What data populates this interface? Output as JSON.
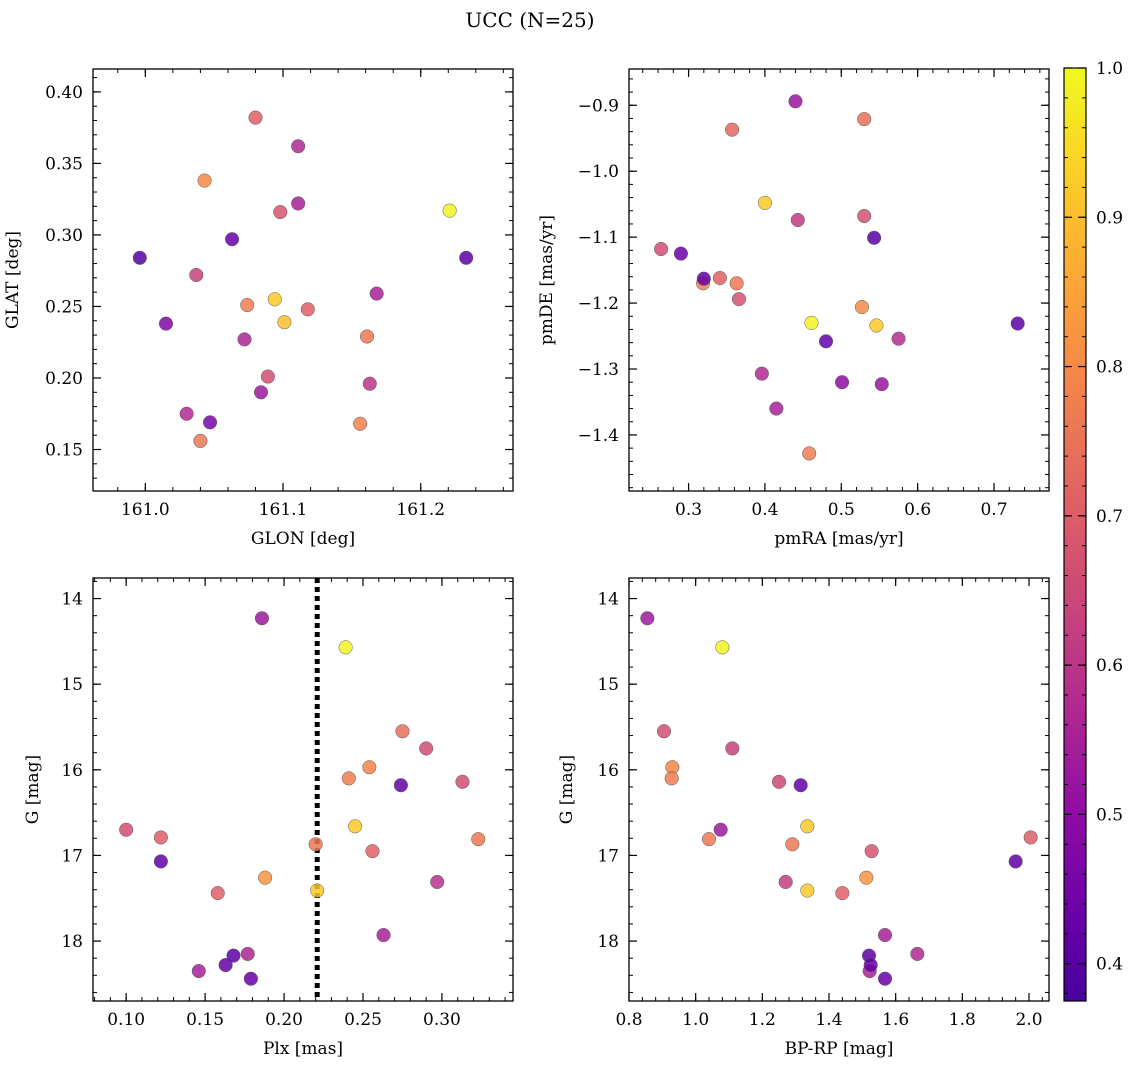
{
  "figure": {
    "title": "UCC (N=25)"
  },
  "colormap": {
    "name": "plasma",
    "range": [
      0.375,
      1.0
    ],
    "ticks": [
      "0.4",
      "0.5",
      "0.6",
      "0.7",
      "0.8",
      "0.9",
      "1.0"
    ],
    "tick_values": [
      0.4,
      0.5,
      0.6,
      0.7,
      0.8,
      0.9,
      1.0
    ]
  },
  "chart_data": [
    {
      "type": "scatter",
      "xlabel": "GLON [deg]",
      "ylabel": "GLAT [deg]",
      "xlim": [
        160.962,
        161.267
      ],
      "ylim": [
        0.121,
        0.416
      ],
      "xticks": [
        161.0,
        161.1,
        161.2
      ],
      "xtick_labels": [
        "161.0",
        "161.1",
        "161.2"
      ],
      "yticks": [
        0.15,
        0.2,
        0.25,
        0.3,
        0.35,
        0.4
      ],
      "ytick_labels": [
        "0.15",
        "0.20",
        "0.25",
        "0.30",
        "0.35",
        "0.40"
      ],
      "points": [
        {
          "x": 160.996,
          "y": 0.284,
          "c": 0.39
        },
        {
          "x": 161.015,
          "y": 0.238,
          "c": 0.47
        },
        {
          "x": 161.03,
          "y": 0.175,
          "c": 0.57
        },
        {
          "x": 161.037,
          "y": 0.272,
          "c": 0.63
        },
        {
          "x": 161.04,
          "y": 0.156,
          "c": 0.76
        },
        {
          "x": 161.043,
          "y": 0.338,
          "c": 0.8
        },
        {
          "x": 161.047,
          "y": 0.169,
          "c": 0.46
        },
        {
          "x": 161.063,
          "y": 0.297,
          "c": 0.43
        },
        {
          "x": 161.072,
          "y": 0.227,
          "c": 0.56
        },
        {
          "x": 161.074,
          "y": 0.251,
          "c": 0.77
        },
        {
          "x": 161.08,
          "y": 0.382,
          "c": 0.7
        },
        {
          "x": 161.084,
          "y": 0.19,
          "c": 0.53
        },
        {
          "x": 161.089,
          "y": 0.201,
          "c": 0.66
        },
        {
          "x": 161.094,
          "y": 0.255,
          "c": 0.92
        },
        {
          "x": 161.098,
          "y": 0.316,
          "c": 0.68
        },
        {
          "x": 161.101,
          "y": 0.239,
          "c": 0.9
        },
        {
          "x": 161.111,
          "y": 0.362,
          "c": 0.57
        },
        {
          "x": 161.111,
          "y": 0.322,
          "c": 0.55
        },
        {
          "x": 161.118,
          "y": 0.248,
          "c": 0.7
        },
        {
          "x": 161.156,
          "y": 0.168,
          "c": 0.78
        },
        {
          "x": 161.161,
          "y": 0.229,
          "c": 0.76
        },
        {
          "x": 161.163,
          "y": 0.196,
          "c": 0.6
        },
        {
          "x": 161.168,
          "y": 0.259,
          "c": 0.55
        },
        {
          "x": 161.221,
          "y": 0.317,
          "c": 0.99
        },
        {
          "x": 161.233,
          "y": 0.284,
          "c": 0.41
        }
      ]
    },
    {
      "type": "scatter",
      "xlabel": "pmRA [mas/yr]",
      "ylabel": "pmDE [mas/yr]",
      "xlim": [
        0.222,
        0.772
      ],
      "ylim": [
        -1.485,
        -0.845
      ],
      "xticks": [
        0.3,
        0.4,
        0.5,
        0.6,
        0.7
      ],
      "xtick_labels": [
        "0.3",
        "0.4",
        "0.5",
        "0.6",
        "0.7"
      ],
      "yticks": [
        -1.4,
        -1.3,
        -1.2,
        -1.1,
        -1.0,
        -0.9
      ],
      "ytick_labels": [
        "−1.4",
        "−1.3",
        "−1.2",
        "−1.1",
        "−1.0",
        "−0.9"
      ],
      "points": [
        {
          "x": 0.264,
          "y": -1.118,
          "c": 0.66
        },
        {
          "x": 0.29,
          "y": -1.125,
          "c": 0.43
        },
        {
          "x": 0.319,
          "y": -1.17,
          "c": 0.78
        },
        {
          "x": 0.32,
          "y": -1.163,
          "c": 0.42
        },
        {
          "x": 0.341,
          "y": -1.162,
          "c": 0.71
        },
        {
          "x": 0.357,
          "y": -0.937,
          "c": 0.72
        },
        {
          "x": 0.363,
          "y": -1.17,
          "c": 0.76
        },
        {
          "x": 0.366,
          "y": -1.194,
          "c": 0.67
        },
        {
          "x": 0.396,
          "y": -1.307,
          "c": 0.57
        },
        {
          "x": 0.4,
          "y": -1.048,
          "c": 0.92
        },
        {
          "x": 0.415,
          "y": -1.36,
          "c": 0.55
        },
        {
          "x": 0.44,
          "y": -0.894,
          "c": 0.52
        },
        {
          "x": 0.443,
          "y": -1.074,
          "c": 0.61
        },
        {
          "x": 0.458,
          "y": -1.428,
          "c": 0.77
        },
        {
          "x": 0.461,
          "y": -1.23,
          "c": 0.99
        },
        {
          "x": 0.48,
          "y": -1.258,
          "c": 0.42
        },
        {
          "x": 0.501,
          "y": -1.32,
          "c": 0.5
        },
        {
          "x": 0.527,
          "y": -1.206,
          "c": 0.8
        },
        {
          "x": 0.53,
          "y": -0.921,
          "c": 0.74
        },
        {
          "x": 0.53,
          "y": -1.068,
          "c": 0.67
        },
        {
          "x": 0.543,
          "y": -1.101,
          "c": 0.4
        },
        {
          "x": 0.546,
          "y": -1.234,
          "c": 0.92
        },
        {
          "x": 0.553,
          "y": -1.323,
          "c": 0.52
        },
        {
          "x": 0.575,
          "y": -1.254,
          "c": 0.58
        },
        {
          "x": 0.731,
          "y": -1.231,
          "c": 0.41
        }
      ]
    },
    {
      "type": "scatter",
      "xlabel": "Plx [mas]",
      "ylabel": "G [mag]",
      "xlim": [
        0.079,
        0.345
      ],
      "ylim": [
        18.7,
        13.76
      ],
      "xticks": [
        0.1,
        0.15,
        0.2,
        0.25,
        0.3
      ],
      "xtick_labels": [
        "0.10",
        "0.15",
        "0.20",
        "0.25",
        "0.30"
      ],
      "yticks": [
        14,
        15,
        16,
        17,
        18
      ],
      "ytick_labels": [
        "14",
        "15",
        "16",
        "17",
        "18"
      ],
      "vline": {
        "x": 0.221,
        "style": "dotted"
      },
      "points": [
        {
          "x": 0.1,
          "y": 16.7,
          "c": 0.66
        },
        {
          "x": 0.122,
          "y": 16.79,
          "c": 0.7
        },
        {
          "x": 0.122,
          "y": 17.07,
          "c": 0.42
        },
        {
          "x": 0.146,
          "y": 18.35,
          "c": 0.55
        },
        {
          "x": 0.158,
          "y": 17.44,
          "c": 0.7
        },
        {
          "x": 0.163,
          "y": 18.28,
          "c": 0.42
        },
        {
          "x": 0.168,
          "y": 18.17,
          "c": 0.41
        },
        {
          "x": 0.177,
          "y": 18.15,
          "c": 0.56
        },
        {
          "x": 0.179,
          "y": 18.44,
          "c": 0.43
        },
        {
          "x": 0.186,
          "y": 14.23,
          "c": 0.53
        },
        {
          "x": 0.188,
          "y": 17.26,
          "c": 0.82
        },
        {
          "x": 0.22,
          "y": 16.87,
          "c": 0.76
        },
        {
          "x": 0.221,
          "y": 17.41,
          "c": 0.92
        },
        {
          "x": 0.239,
          "y": 14.57,
          "c": 0.99
        },
        {
          "x": 0.241,
          "y": 16.1,
          "c": 0.77
        },
        {
          "x": 0.245,
          "y": 16.66,
          "c": 0.92
        },
        {
          "x": 0.254,
          "y": 15.97,
          "c": 0.79
        },
        {
          "x": 0.256,
          "y": 16.95,
          "c": 0.71
        },
        {
          "x": 0.263,
          "y": 17.93,
          "c": 0.55
        },
        {
          "x": 0.274,
          "y": 16.18,
          "c": 0.42
        },
        {
          "x": 0.275,
          "y": 15.55,
          "c": 0.74
        },
        {
          "x": 0.29,
          "y": 15.75,
          "c": 0.66
        },
        {
          "x": 0.297,
          "y": 17.31,
          "c": 0.59
        },
        {
          "x": 0.313,
          "y": 16.14,
          "c": 0.66
        },
        {
          "x": 0.323,
          "y": 16.81,
          "c": 0.76
        }
      ]
    },
    {
      "type": "scatter",
      "xlabel": "BP-RP [mag]",
      "ylabel": "G [mag]",
      "xlim": [
        0.8,
        2.06
      ],
      "ylim": [
        18.7,
        13.76
      ],
      "xticks": [
        0.8,
        1.0,
        1.2,
        1.4,
        1.6,
        1.8,
        2.0
      ],
      "xtick_labels": [
        "0.8",
        "1.0",
        "1.2",
        "1.4",
        "1.6",
        "1.8",
        "2.0"
      ],
      "yticks": [
        14,
        15,
        16,
        17,
        18
      ],
      "ytick_labels": [
        "14",
        "15",
        "16",
        "17",
        "18"
      ],
      "points": [
        {
          "x": 0.855,
          "y": 14.23,
          "c": 0.53
        },
        {
          "x": 0.905,
          "y": 15.55,
          "c": 0.66
        },
        {
          "x": 0.93,
          "y": 15.97,
          "c": 0.79
        },
        {
          "x": 0.928,
          "y": 16.1,
          "c": 0.77
        },
        {
          "x": 1.04,
          "y": 16.81,
          "c": 0.76
        },
        {
          "x": 1.075,
          "y": 16.7,
          "c": 0.53
        },
        {
          "x": 1.08,
          "y": 14.57,
          "c": 0.99
        },
        {
          "x": 1.11,
          "y": 15.75,
          "c": 0.63
        },
        {
          "x": 1.25,
          "y": 16.14,
          "c": 0.65
        },
        {
          "x": 1.27,
          "y": 17.31,
          "c": 0.62
        },
        {
          "x": 1.29,
          "y": 16.87,
          "c": 0.76
        },
        {
          "x": 1.315,
          "y": 16.18,
          "c": 0.42
        },
        {
          "x": 1.335,
          "y": 16.66,
          "c": 0.92
        },
        {
          "x": 1.335,
          "y": 17.41,
          "c": 0.92
        },
        {
          "x": 1.44,
          "y": 17.44,
          "c": 0.71
        },
        {
          "x": 1.512,
          "y": 17.26,
          "c": 0.82
        },
        {
          "x": 1.52,
          "y": 18.17,
          "c": 0.41
        },
        {
          "x": 1.522,
          "y": 18.35,
          "c": 0.55
        },
        {
          "x": 1.525,
          "y": 18.28,
          "c": 0.42
        },
        {
          "x": 1.528,
          "y": 16.95,
          "c": 0.68
        },
        {
          "x": 1.568,
          "y": 17.93,
          "c": 0.55
        },
        {
          "x": 1.568,
          "y": 18.44,
          "c": 0.43
        },
        {
          "x": 1.665,
          "y": 18.15,
          "c": 0.57
        },
        {
          "x": 1.96,
          "y": 17.07,
          "c": 0.41
        },
        {
          "x": 2.005,
          "y": 16.79,
          "c": 0.7
        }
      ]
    }
  ]
}
